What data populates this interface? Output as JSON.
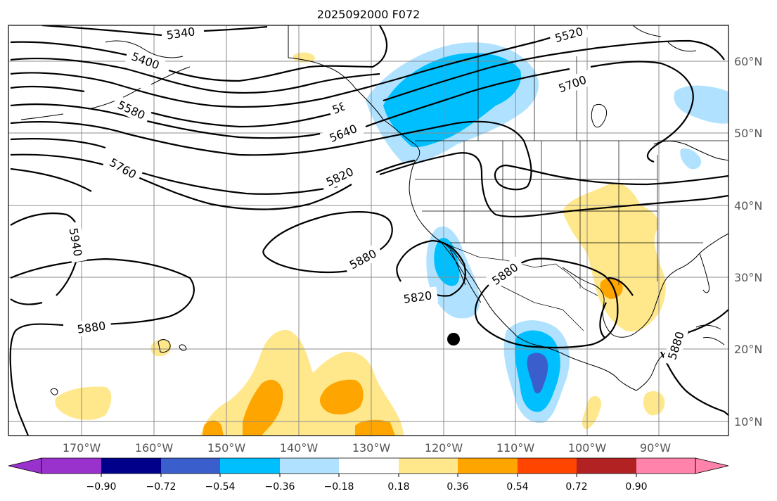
{
  "title": "2025092000 F072",
  "lon_labels": [
    "170°W",
    "160°W",
    "150°W",
    "140°W",
    "130°W",
    "120°W",
    "110°W",
    "100°W",
    "90°W"
  ],
  "lat_labels": [
    "60°N",
    "50°N",
    "40°N",
    "30°N",
    "20°N",
    "10°N"
  ],
  "contour_labels": [
    "5340",
    "5400",
    "5520",
    "5580",
    "5640",
    "5700",
    "5760",
    "5820",
    "5820",
    "5880",
    "5880",
    "5880",
    "5880",
    "5940",
    "5820"
  ],
  "colorbar": {
    "ticks": [
      "−0.90",
      "−0.72",
      "−0.54",
      "−0.36",
      "−0.18",
      "0.18",
      "0.36",
      "0.54",
      "0.72",
      "0.90"
    ],
    "colors": [
      "#9932cc",
      "#00008b",
      "#3a5fcd",
      "#00bfff",
      "#b0e2ff",
      "#ffffff",
      "#ffe78c",
      "#ffa500",
      "#ff4500",
      "#b22222",
      "#ff83aa"
    ]
  },
  "shading_colors": {
    "pos_018": "#ffe78c",
    "pos_036": "#ffa500",
    "neg_018": "#b0e2ff",
    "neg_036": "#00bfff",
    "neg_054": "#3a5fcd"
  },
  "marker": "black-dot"
}
